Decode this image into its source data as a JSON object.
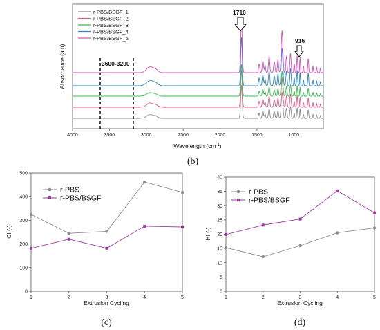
{
  "chart_data": [
    {
      "panel": "(b)",
      "type": "line",
      "xlabel": "Wavelength (cm",
      "xlabel_sup": "-1",
      "xlabel_end": ")",
      "ylabel": "Absorbance (a.u)",
      "xlim": [
        4000,
        600
      ],
      "xticks": [
        4000,
        3500,
        3000,
        2500,
        2000,
        1500,
        1000
      ],
      "legend_position": "top-left",
      "annotations": {
        "range": "3600-3200",
        "peak1": "1710",
        "peak2": "916"
      },
      "series": [
        {
          "name": "r-PBS/BSGF_1",
          "color": "#8c8c8c"
        },
        {
          "name": "r-PBS/BSGF_2",
          "color": "#e8588a"
        },
        {
          "name": "r-PBS/BSGF_3",
          "color": "#2fbf4a"
        },
        {
          "name": "r-PBS/BSGF_4",
          "color": "#2b86c6"
        },
        {
          "name": "r-PBS/BSGF_5",
          "color": "#d94fbd"
        }
      ]
    },
    {
      "panel": "(c)",
      "type": "line",
      "xlabel": "Extrusion Cycling",
      "ylabel": "CI (-)",
      "ylim": [
        0,
        500
      ],
      "yticks": [
        0,
        100,
        200,
        300,
        400,
        500
      ],
      "x": [
        1,
        2,
        3,
        4,
        5
      ],
      "legend_position": "top-left",
      "series": [
        {
          "name": "r-PBS",
          "color": "#8c8c8c",
          "marker": "circle",
          "values": [
            325,
            245,
            253,
            462,
            418
          ]
        },
        {
          "name": "r-PBS/BSGF",
          "color": "#a03aa0",
          "marker": "square",
          "values": [
            182,
            220,
            182,
            275,
            272
          ]
        }
      ]
    },
    {
      "panel": "(d)",
      "type": "line",
      "xlabel": "Extrusion Cycling",
      "ylabel": "HI (-)",
      "ylim": [
        0,
        40
      ],
      "yticks": [
        0,
        5,
        10,
        15,
        20,
        25,
        30,
        35,
        40
      ],
      "x": [
        1,
        2,
        3,
        4,
        5
      ],
      "legend_position": "top-left",
      "series": [
        {
          "name": "r-PBS",
          "color": "#8c8c8c",
          "marker": "circle",
          "values": [
            15.3,
            12.1,
            16.0,
            20.5,
            22.2
          ]
        },
        {
          "name": "r-PBS/BSGF",
          "color": "#a03aa0",
          "marker": "square",
          "values": [
            19.9,
            23.2,
            25.3,
            35.2,
            27.5
          ]
        }
      ]
    }
  ]
}
